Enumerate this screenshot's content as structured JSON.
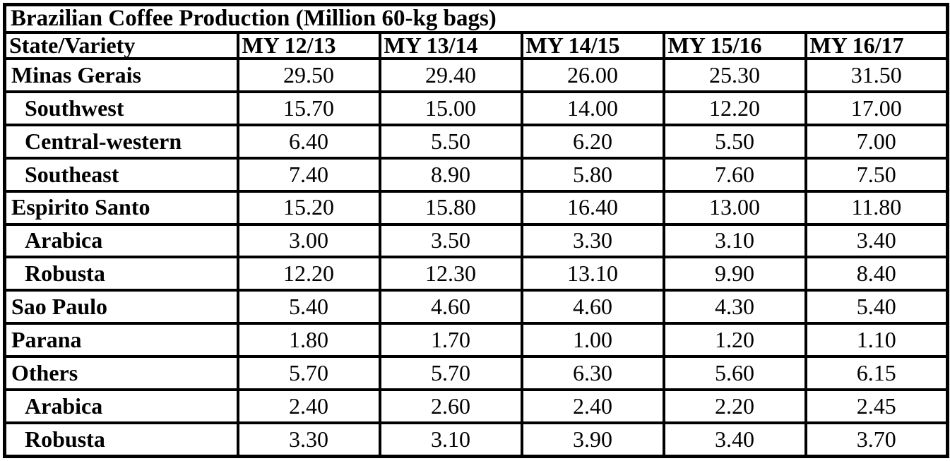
{
  "page": {
    "background_color": "#ffffff",
    "border_color": "#000000",
    "text_color": "#000000"
  },
  "table": {
    "title": "Brazilian Coffee Production (Million 60-kg bags)",
    "columns": [
      "State/Variety",
      "MY 12/13",
      "MY 13/14",
      "MY 14/15",
      "MY 15/16",
      "MY 16/17"
    ],
    "rows": [
      {
        "label": "Minas Gerais",
        "indent": false,
        "values": [
          "29.50",
          "29.40",
          "26.00",
          "25.30",
          "31.50"
        ]
      },
      {
        "label": "Southwest",
        "indent": true,
        "values": [
          "15.70",
          "15.00",
          "14.00",
          "12.20",
          "17.00"
        ]
      },
      {
        "label": "Central-western",
        "indent": true,
        "values": [
          "6.40",
          "5.50",
          "6.20",
          "5.50",
          "7.00"
        ]
      },
      {
        "label": "Southeast",
        "indent": true,
        "values": [
          "7.40",
          "8.90",
          "5.80",
          "7.60",
          "7.50"
        ]
      },
      {
        "label": "Espirito Santo",
        "indent": false,
        "values": [
          "15.20",
          "15.80",
          "16.40",
          "13.00",
          "11.80"
        ]
      },
      {
        "label": "Arabica",
        "indent": true,
        "values": [
          "3.00",
          "3.50",
          "3.30",
          "3.10",
          "3.40"
        ]
      },
      {
        "label": "Robusta",
        "indent": true,
        "values": [
          "12.20",
          "12.30",
          "13.10",
          "9.90",
          "8.40"
        ]
      },
      {
        "label": "Sao Paulo",
        "indent": false,
        "values": [
          "5.40",
          "4.60",
          "4.60",
          "4.30",
          "5.40"
        ]
      },
      {
        "label": "Parana",
        "indent": false,
        "values": [
          "1.80",
          "1.70",
          "1.00",
          "1.20",
          "1.10"
        ]
      },
      {
        "label": "Others",
        "indent": false,
        "values": [
          "5.70",
          "5.70",
          "6.30",
          "5.60",
          "6.15"
        ]
      },
      {
        "label": "Arabica",
        "indent": true,
        "values": [
          "2.40",
          "2.60",
          "2.40",
          "2.20",
          "2.45"
        ]
      },
      {
        "label": "Robusta",
        "indent": true,
        "values": [
          "3.30",
          "3.10",
          "3.90",
          "3.40",
          "3.70"
        ]
      }
    ]
  },
  "chart_data": {
    "type": "table",
    "title": "Brazilian Coffee Production (Million 60-kg bags)",
    "unit": "Million 60-kg bags",
    "categories": [
      "MY 12/13",
      "MY 13/14",
      "MY 14/15",
      "MY 15/16",
      "MY 16/17"
    ],
    "series": [
      {
        "name": "Minas Gerais",
        "values": [
          29.5,
          29.4,
          26.0,
          25.3,
          31.5
        ]
      },
      {
        "name": "Minas Gerais / Southwest",
        "values": [
          15.7,
          15.0,
          14.0,
          12.2,
          17.0
        ]
      },
      {
        "name": "Minas Gerais / Central-western",
        "values": [
          6.4,
          5.5,
          6.2,
          5.5,
          7.0
        ]
      },
      {
        "name": "Minas Gerais / Southeast",
        "values": [
          7.4,
          8.9,
          5.8,
          7.6,
          7.5
        ]
      },
      {
        "name": "Espirito Santo",
        "values": [
          15.2,
          15.8,
          16.4,
          13.0,
          11.8
        ]
      },
      {
        "name": "Espirito Santo / Arabica",
        "values": [
          3.0,
          3.5,
          3.3,
          3.1,
          3.4
        ]
      },
      {
        "name": "Espirito Santo / Robusta",
        "values": [
          12.2,
          12.3,
          13.1,
          9.9,
          8.4
        ]
      },
      {
        "name": "Sao Paulo",
        "values": [
          5.4,
          4.6,
          4.6,
          4.3,
          5.4
        ]
      },
      {
        "name": "Parana",
        "values": [
          1.8,
          1.7,
          1.0,
          1.2,
          1.1
        ]
      },
      {
        "name": "Others",
        "values": [
          5.7,
          5.7,
          6.3,
          5.6,
          6.15
        ]
      },
      {
        "name": "Others / Arabica",
        "values": [
          2.4,
          2.6,
          2.4,
          2.2,
          2.45
        ]
      },
      {
        "name": "Others / Robusta",
        "values": [
          3.3,
          3.1,
          3.9,
          3.4,
          3.7
        ]
      }
    ]
  }
}
